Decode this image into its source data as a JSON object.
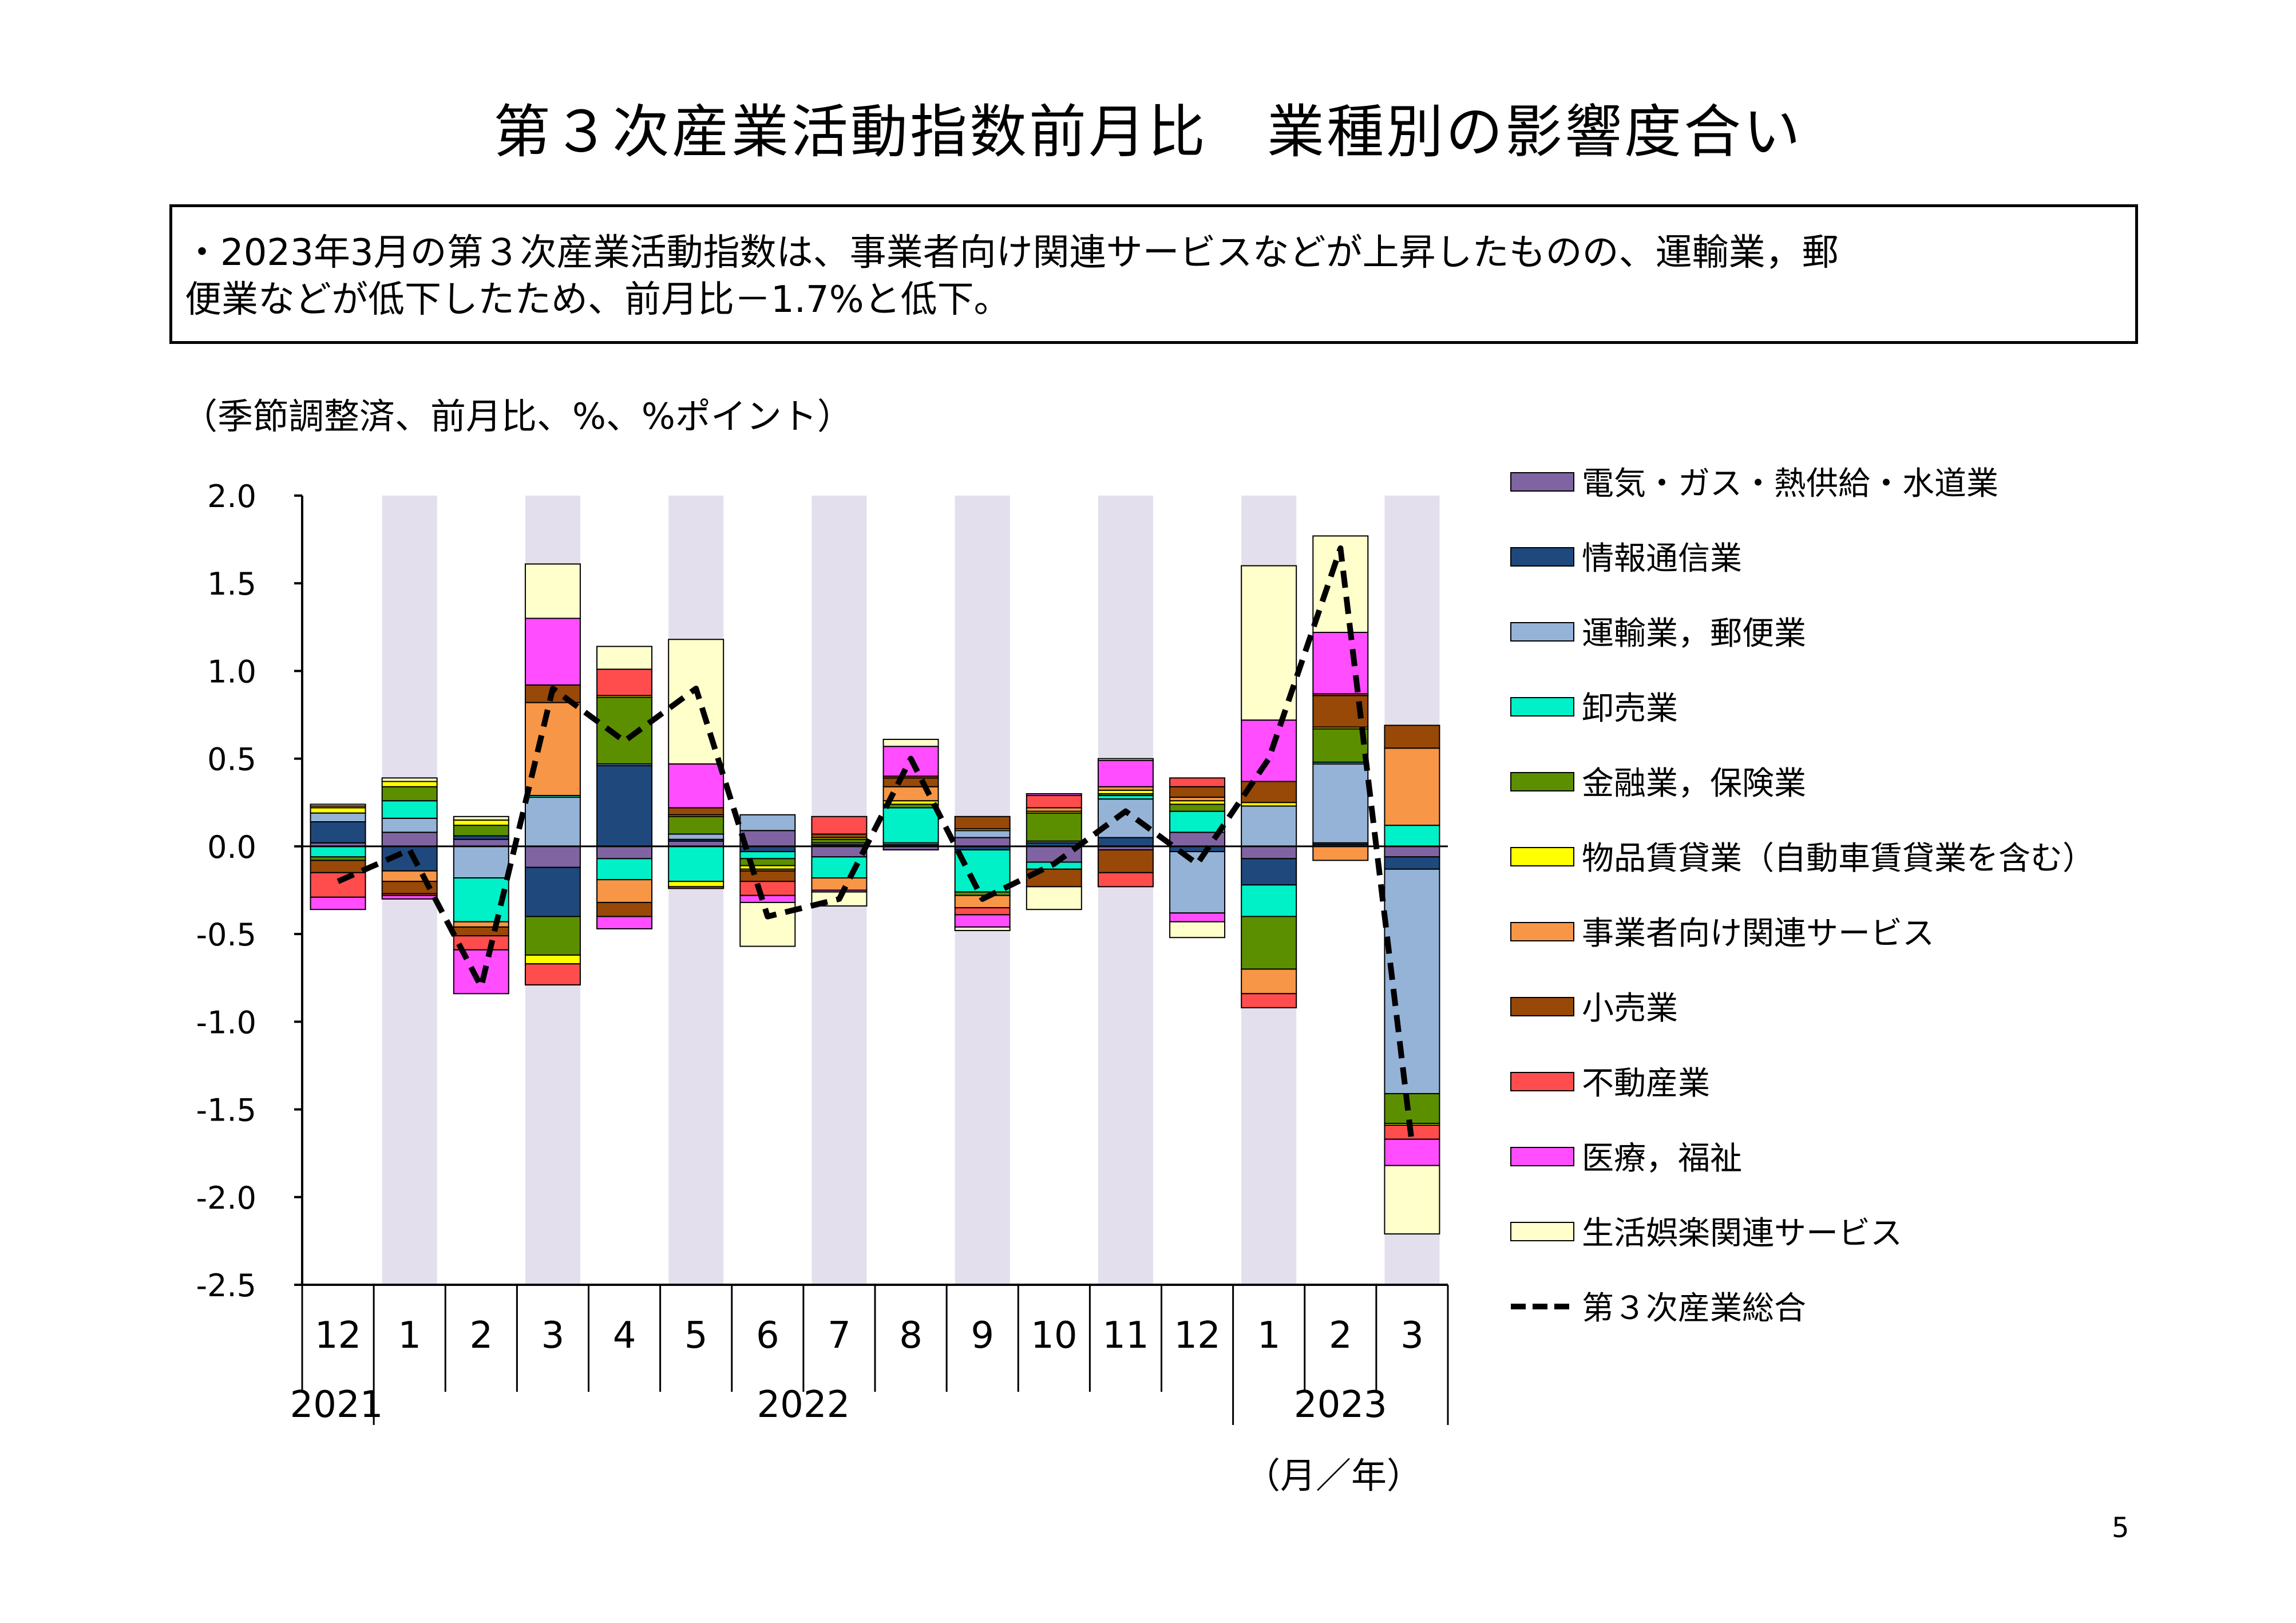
{
  "title": "第３次産業活動指数前月比　業種別の影響度合い",
  "summary_lines": [
    "・2023年3月の第３次産業活動指数は、事業者向け関連サービスなどが上昇したものの、運輸業，郵",
    "便業などが低下したため、前月比－1.7%と低下。"
  ],
  "unit_label": "（季節調整済、前月比、%、%ポイント）",
  "page_number": "5",
  "chart_data": {
    "type": "bar",
    "stacked": true,
    "ylim": [
      -2.5,
      2.0
    ],
    "yticks": [
      2.0,
      1.5,
      1.0,
      0.5,
      0.0,
      -0.5,
      -1.0,
      -1.5,
      -2.0,
      -2.5
    ],
    "ytick_labels": [
      "2.0",
      "1.5",
      "1.0",
      "0.5",
      "0.0",
      "-0.5",
      "-1.0",
      "-1.5",
      "-2.0",
      "-2.5"
    ],
    "categories": [
      "12",
      "1",
      "2",
      "3",
      "4",
      "5",
      "6",
      "7",
      "8",
      "9",
      "10",
      "11",
      "12",
      "1",
      "2",
      "3"
    ],
    "shaded_categories": [
      1,
      3,
      5,
      7,
      9,
      11,
      13,
      15
    ],
    "year_labels": [
      {
        "label": "2021",
        "start": 0,
        "end": 0
      },
      {
        "label": "2022",
        "start": 1,
        "end": 12
      },
      {
        "label": "2023",
        "start": 13,
        "end": 15
      }
    ],
    "x_unit_label": "（月／年）",
    "legend_position": "right",
    "series": [
      {
        "name": "電気・ガス・熱供給・水道業",
        "color": "#8064a2",
        "values": [
          0.02,
          0.08,
          0.04,
          -0.12,
          -0.07,
          0.03,
          0.09,
          -0.06,
          -0.02,
          0.05,
          -0.09,
          -0.02,
          0.08,
          -0.07,
          0.01,
          -0.06
        ]
      },
      {
        "name": "情報通信業",
        "color": "#1f497d",
        "values": [
          0.12,
          -0.14,
          0.02,
          -0.28,
          0.46,
          0.01,
          -0.03,
          0.01,
          0.01,
          -0.02,
          0.02,
          0.05,
          -0.03,
          -0.15,
          0.01,
          -0.07
        ]
      },
      {
        "name": "運輸業，郵便業",
        "color": "#95b3d7",
        "values": [
          0.05,
          0.08,
          -0.18,
          0.28,
          0.01,
          0.03,
          0.09,
          0.01,
          0.01,
          0.04,
          0.01,
          0.22,
          -0.35,
          0.23,
          0.45,
          -1.28
        ]
      },
      {
        "name": "卸売業",
        "color": "#00f0c8",
        "values": [
          -0.06,
          0.1,
          -0.25,
          0.01,
          -0.12,
          -0.2,
          -0.04,
          -0.12,
          0.2,
          -0.24,
          -0.04,
          0.02,
          0.12,
          -0.18,
          0.01,
          0.12
        ]
      },
      {
        "name": "金融業，保険業",
        "color": "#5c8f00",
        "values": [
          -0.02,
          0.08,
          0.06,
          -0.22,
          0.38,
          0.1,
          -0.04,
          0.02,
          0.02,
          -0.02,
          0.16,
          0.01,
          0.04,
          -0.3,
          0.19,
          -0.17
        ]
      },
      {
        "name": "物品賃貸業（自動車賃貸業を含む）",
        "color": "#ffff00",
        "values": [
          0.03,
          0.03,
          0.03,
          -0.05,
          0.01,
          -0.03,
          -0.02,
          0.01,
          0.02,
          0.01,
          0.01,
          0.02,
          0.02,
          0.02,
          0.01,
          -0.01
        ]
      },
      {
        "name": "事業者向け関連サービス",
        "color": "#f79646",
        "values": [
          0.01,
          -0.06,
          -0.03,
          0.53,
          -0.13,
          0.01,
          -0.01,
          -0.07,
          0.08,
          -0.07,
          0.02,
          0.02,
          0.02,
          -0.14,
          -0.08,
          0.44
        ]
      },
      {
        "name": "小売業",
        "color": "#984807",
        "values": [
          -0.07,
          -0.07,
          -0.05,
          0.1,
          -0.08,
          0.04,
          -0.06,
          0.02,
          0.05,
          0.07,
          -0.1,
          -0.13,
          0.06,
          0.12,
          0.18,
          0.13
        ]
      },
      {
        "name": "不動産業",
        "color": "#ff4d4d",
        "values": [
          -0.14,
          -0.01,
          -0.08,
          -0.12,
          0.15,
          -0.01,
          -0.08,
          0.1,
          0.01,
          -0.04,
          0.07,
          -0.08,
          0.05,
          -0.08,
          0.01,
          -0.08
        ]
      },
      {
        "name": "医療，福祉",
        "color": "#ff4dff",
        "values": [
          -0.07,
          -0.02,
          -0.25,
          0.38,
          -0.07,
          0.25,
          -0.04,
          -0.01,
          0.17,
          -0.07,
          0.01,
          0.15,
          -0.05,
          0.35,
          0.35,
          -0.15
        ]
      },
      {
        "name": "生活娯楽関連サービス",
        "color": "#ffffcc",
        "values": [
          0.01,
          0.02,
          0.02,
          0.31,
          0.13,
          0.71,
          -0.25,
          -0.08,
          0.04,
          -0.02,
          -0.13,
          0.01,
          -0.09,
          0.88,
          0.55,
          -0.39
        ]
      }
    ],
    "line_series": {
      "name": "第３次産業総合",
      "color": "#000000",
      "dashed": true,
      "values": [
        -0.2,
        -0.02,
        -0.8,
        0.9,
        0.6,
        0.9,
        -0.4,
        -0.3,
        0.5,
        -0.3,
        -0.1,
        0.2,
        -0.1,
        0.5,
        1.7,
        -1.7
      ]
    }
  }
}
